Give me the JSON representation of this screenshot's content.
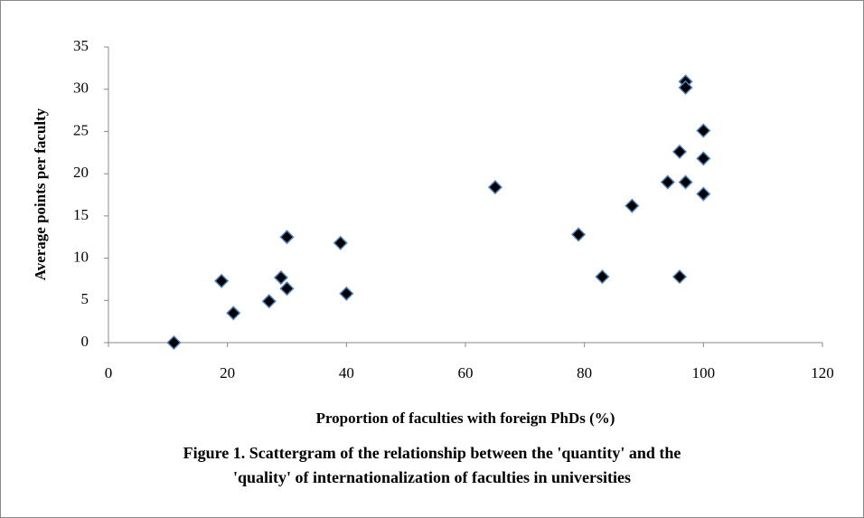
{
  "chart_data": {
    "type": "scatter",
    "ylabel": "Average points per faculty",
    "xlabel": "Proportion of faculties with foreign PhDs (%)",
    "caption": [
      "Figure 1. Scattergram of the relationship between the 'quantity' and the",
      "'quality' of internationalization of faculties in universities"
    ],
    "color": "#000000",
    "edge_color": "#4f81bd",
    "x": [
      11,
      19,
      21,
      27,
      29,
      30,
      30,
      39,
      40,
      65,
      79,
      83,
      88,
      94,
      96,
      96,
      97,
      97,
      97,
      100,
      100,
      100
    ],
    "values": [
      0,
      7.3,
      3.5,
      4.9,
      7.7,
      12.5,
      6.4,
      11.8,
      5.8,
      18.4,
      12.8,
      7.8,
      16.2,
      19.0,
      22.6,
      7.8,
      30.9,
      30.2,
      19.0,
      25.1,
      21.8,
      17.6
    ],
    "xlim": [
      0,
      120
    ],
    "xticks": [
      0,
      20,
      40,
      60,
      80,
      100,
      120
    ],
    "ylim": [
      0,
      35
    ],
    "yticks": [
      0,
      5,
      10,
      15,
      20,
      25,
      30,
      35
    ]
  }
}
